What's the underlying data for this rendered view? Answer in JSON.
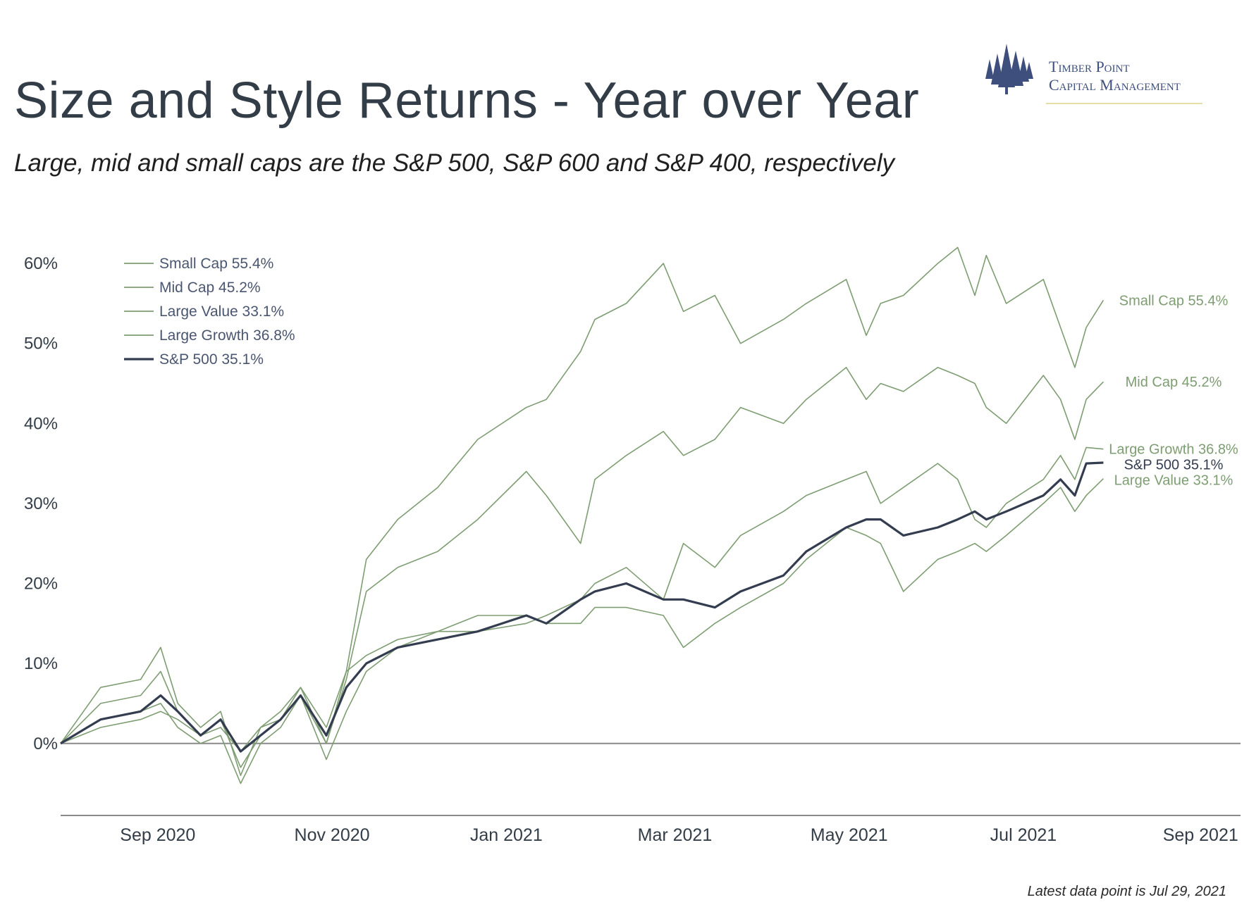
{
  "header": {
    "title": "Size and Style Returns - Year over Year",
    "subtitle": "Large, mid and small caps are the S&P 500, S&P 600 and S&P 400, respectively"
  },
  "logo": {
    "line1": "Timber Point",
    "line2": "Capital Management",
    "icon": "pine-trees-icon",
    "color": "#3e4f7e"
  },
  "footnote": "Latest data point is Jul 29, 2021",
  "colors": {
    "green": "#7e9d72",
    "navy": "#333d4f",
    "axis": "#8a8a8a"
  },
  "chart_data": {
    "type": "line",
    "ylim": [
      -9,
      63
    ],
    "xlim": [
      "2020-07-29",
      "2021-09-15"
    ],
    "yticks": [
      0,
      10,
      20,
      30,
      40,
      50,
      60
    ],
    "ytick_labels": [
      "0%",
      "10%",
      "20%",
      "30%",
      "40%",
      "50%",
      "60%"
    ],
    "xticks": [
      "2020-09-01",
      "2020-11-01",
      "2021-01-01",
      "2021-03-01",
      "2021-05-01",
      "2021-07-01",
      "2021-09-01"
    ],
    "xtick_labels": [
      "Sep 2020",
      "Nov 2020",
      "Jan 2021",
      "Mar 2021",
      "May 2021",
      "Jul 2021",
      "Sep 2021"
    ],
    "zero_line": true,
    "grid": false,
    "legend_position": "top-left",
    "x": [
      "2020-07-29",
      "2020-08-12",
      "2020-08-26",
      "2020-09-02",
      "2020-09-08",
      "2020-09-16",
      "2020-09-23",
      "2020-09-30",
      "2020-10-07",
      "2020-10-14",
      "2020-10-21",
      "2020-10-30",
      "2020-11-06",
      "2020-11-13",
      "2020-11-24",
      "2020-12-08",
      "2020-12-22",
      "2021-01-08",
      "2021-01-15",
      "2021-01-27",
      "2021-02-01",
      "2021-02-12",
      "2021-02-25",
      "2021-03-04",
      "2021-03-15",
      "2021-03-24",
      "2021-04-08",
      "2021-04-16",
      "2021-04-30",
      "2021-05-07",
      "2021-05-12",
      "2021-05-20",
      "2021-06-01",
      "2021-06-08",
      "2021-06-14",
      "2021-06-18",
      "2021-06-25",
      "2021-07-08",
      "2021-07-14",
      "2021-07-19",
      "2021-07-23",
      "2021-07-29"
    ],
    "series": [
      {
        "name": "Small Cap 55.4%",
        "label": "Small Cap 55.4%",
        "color": "#7e9d72",
        "values": [
          0,
          7,
          8,
          12,
          5,
          2,
          4,
          -4,
          2,
          4,
          7,
          0,
          9,
          23,
          28,
          32,
          38,
          42,
          43,
          49,
          53,
          55,
          60,
          54,
          56,
          50,
          53,
          55,
          58,
          51,
          55,
          56,
          60,
          62,
          56,
          61,
          55,
          58,
          52,
          47,
          52,
          55.4
        ]
      },
      {
        "name": "Mid Cap 45.2%",
        "label": "Mid Cap 45.2%",
        "color": "#7e9d72",
        "values": [
          0,
          5,
          6,
          9,
          4,
          1,
          3,
          -3,
          1,
          3,
          6,
          0,
          8,
          19,
          22,
          24,
          28,
          34,
          31,
          25,
          33,
          36,
          39,
          36,
          38,
          42,
          40,
          43,
          47,
          43,
          45,
          44,
          47,
          46,
          45,
          42,
          40,
          46,
          43,
          38,
          43,
          45.2
        ]
      },
      {
        "name": "Large Value 33.1%",
        "label": "Large Value 33.1%",
        "color": "#7e9d72",
        "values": [
          0,
          3,
          4,
          5,
          2,
          0,
          1,
          -5,
          0,
          2,
          6,
          -2,
          4,
          9,
          12,
          14,
          16,
          16,
          15,
          15,
          17,
          17,
          16,
          12,
          15,
          17,
          20,
          23,
          27,
          26,
          25,
          19,
          23,
          24,
          25,
          24,
          26,
          30,
          32,
          29,
          31,
          33.1
        ]
      },
      {
        "name": "Large Growth 36.8%",
        "label": "Large Growth 36.8%",
        "color": "#7e9d72",
        "values": [
          0,
          2,
          3,
          4,
          3,
          1,
          2,
          -1,
          2,
          3,
          7,
          2,
          9,
          11,
          13,
          14,
          14,
          15,
          16,
          18,
          20,
          22,
          18,
          25,
          22,
          26,
          29,
          31,
          33,
          34,
          30,
          32,
          35,
          33,
          28,
          27,
          30,
          33,
          36,
          33,
          37,
          36.8
        ]
      },
      {
        "name": "S&P 500 35.1%",
        "label": "S&P 500 35.1%",
        "color": "#333d4f",
        "values": [
          0,
          3,
          4,
          6,
          4,
          1,
          3,
          -1,
          1,
          3,
          6,
          1,
          7,
          10,
          12,
          13,
          14,
          16,
          15,
          18,
          19,
          20,
          18,
          18,
          17,
          19,
          21,
          24,
          27,
          28,
          28,
          26,
          27,
          28,
          29,
          28,
          29,
          31,
          33,
          31,
          35,
          35.1
        ]
      }
    ]
  }
}
